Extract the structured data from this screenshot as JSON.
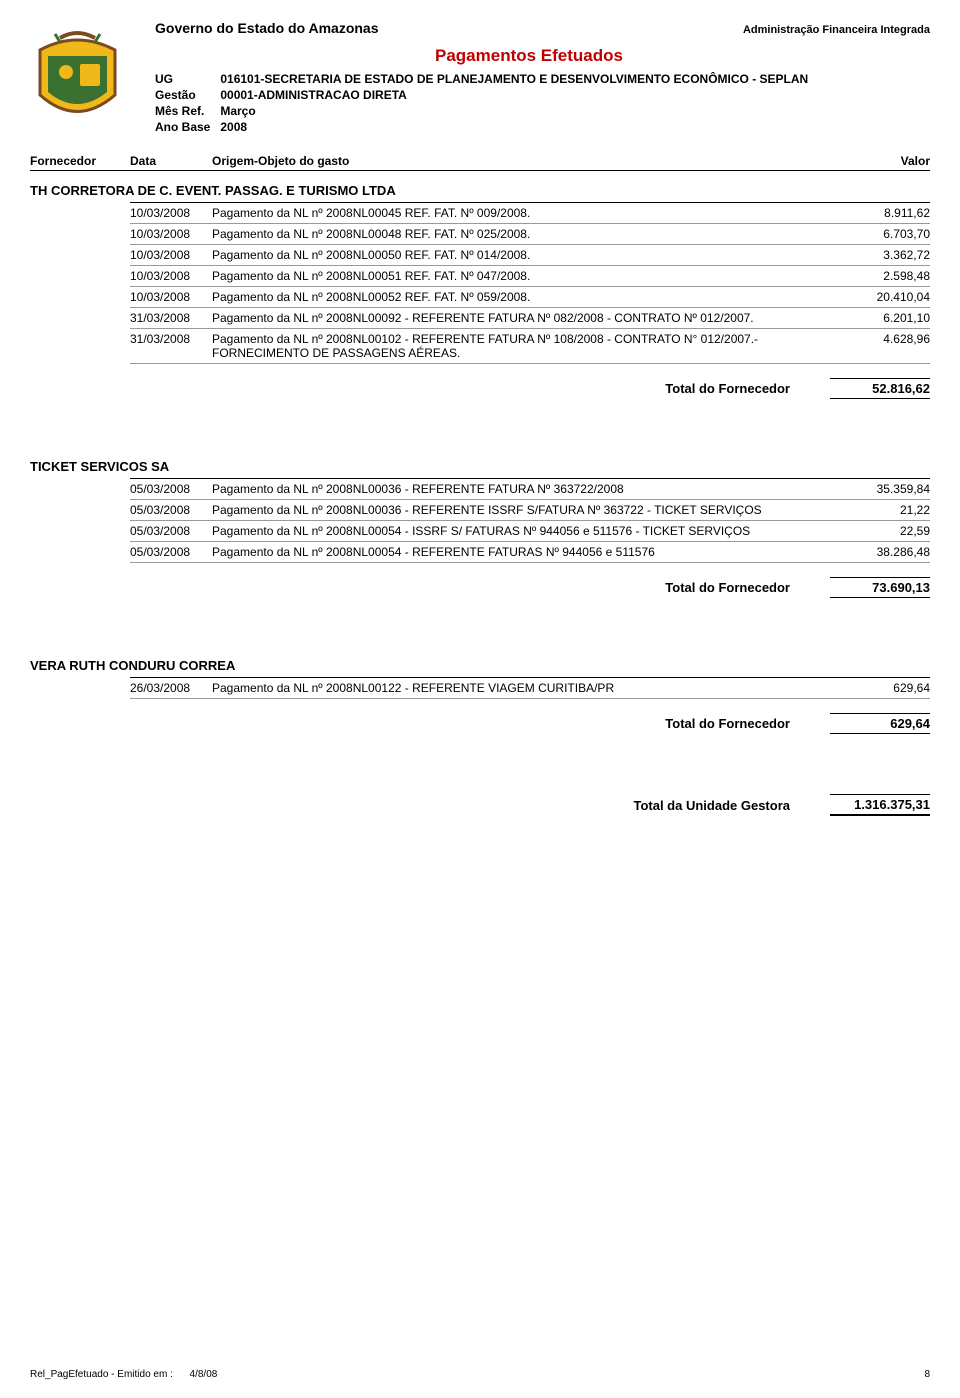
{
  "header": {
    "gov": "Governo do Estado do Amazonas",
    "afi": "Administração Financeira Integrada",
    "title": "Pagamentos Efetuados",
    "meta": [
      {
        "label": "UG",
        "value": "016101-SECRETARIA DE ESTADO DE PLANEJAMENTO E DESENVOLVIMENTO ECONÔMICO - SEPLAN"
      },
      {
        "label": "Gestão",
        "value": "00001-ADMINISTRACAO DIRETA"
      },
      {
        "label": "Mês Ref.",
        "value": "Março"
      },
      {
        "label": "Ano Base",
        "value": "2008"
      }
    ],
    "cols": {
      "fornecedor": "Fornecedor",
      "data": "Data",
      "origem": "Origem-Objeto do gasto",
      "valor": "Valor"
    }
  },
  "suppliers": [
    {
      "name": "TH CORRETORA DE C. EVENT. PASSAG. E TURISMO LTDA",
      "rows": [
        {
          "data": "10/03/2008",
          "origem": "Pagamento da NL nº 2008NL00045 REF. FAT. Nº 009/2008.",
          "valor": "8.911,62"
        },
        {
          "data": "10/03/2008",
          "origem": "Pagamento da NL nº 2008NL00048 REF. FAT. Nº 025/2008.",
          "valor": "6.703,70"
        },
        {
          "data": "10/03/2008",
          "origem": "Pagamento da NL nº 2008NL00050 REF. FAT. Nº 014/2008.",
          "valor": "3.362,72"
        },
        {
          "data": "10/03/2008",
          "origem": "Pagamento da NL nº 2008NL00051 REF. FAT. Nº 047/2008.",
          "valor": "2.598,48"
        },
        {
          "data": "10/03/2008",
          "origem": "Pagamento da NL nº 2008NL00052 REF. FAT. Nº 059/2008.",
          "valor": "20.410,04"
        },
        {
          "data": "31/03/2008",
          "origem": "Pagamento da NL nº 2008NL00092 - REFERENTE FATURA Nº 082/2008 - CONTRATO Nº 012/2007.",
          "valor": "6.201,10"
        },
        {
          "data": "31/03/2008",
          "origem": "Pagamento da NL nº 2008NL00102 - REFERENTE FATURA Nº 108/2008 - CONTRATO N° 012/2007.- FORNECIMENTO DE PASSAGENS AÉREAS.",
          "valor": "4.628,96"
        }
      ],
      "total_label": "Total do Fornecedor",
      "total": "52.816,62"
    },
    {
      "name": "TICKET SERVICOS SA",
      "rows": [
        {
          "data": "05/03/2008",
          "origem": "Pagamento da NL nº 2008NL00036 - REFERENTE FATURA Nº 363722/2008",
          "valor": "35.359,84"
        },
        {
          "data": "05/03/2008",
          "origem": "Pagamento da NL nº 2008NL00036 - REFERENTE ISSRF S/FATURA Nº 363722 - TICKET SERVIÇOS",
          "valor": "21,22"
        },
        {
          "data": "05/03/2008",
          "origem": "Pagamento da NL nº 2008NL00054 - ISSRF S/ FATURAS Nº 944056 e 511576 - TICKET SERVIÇOS",
          "valor": "22,59"
        },
        {
          "data": "05/03/2008",
          "origem": "Pagamento da NL nº 2008NL00054 - REFERENTE FATURAS Nº 944056 e 511576",
          "valor": "38.286,48"
        }
      ],
      "total_label": "Total do Fornecedor",
      "total": "73.690,13"
    },
    {
      "name": "VERA RUTH CONDURU CORREA",
      "rows": [
        {
          "data": "26/03/2008",
          "origem": "Pagamento da NL nº 2008NL00122 - REFERENTE VIAGEM CURITIBA/PR",
          "valor": "629,64"
        }
      ],
      "total_label": "Total do Fornecedor",
      "total": "629,64"
    }
  ],
  "ug_total": {
    "label": "Total da Unidade Gestora",
    "value": "1.316.375,31"
  },
  "footer": {
    "left_label": "Rel_PagEfetuado - Emitido em :",
    "left_date": "4/8/08",
    "page": "8"
  },
  "crest_colors": {
    "yellow": "#f0b818",
    "green": "#3a7030",
    "brown": "#7a4a20",
    "black": "#000000"
  }
}
